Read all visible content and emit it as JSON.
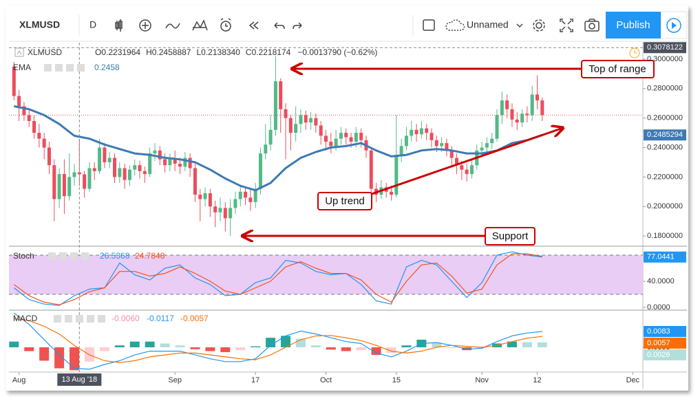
{
  "toolbar": {
    "symbol": "XLMUSD",
    "interval": "D",
    "layout_name": "Unnamed",
    "publish": "Publish"
  },
  "annotations": [
    "Top of range",
    "Up trend",
    "Support"
  ],
  "chart_data": [
    {
      "type": "candlestick",
      "title": "XLMUSD",
      "legend": {
        "items": [
          {
            "label": "O",
            "value": "0.2231964"
          },
          {
            "label": "H",
            "value": "0.2458887"
          },
          {
            "label": "L",
            "value": "0.2138340"
          },
          {
            "label": "C",
            "value": "0.2218174"
          }
        ],
        "change": "−0.0013790 (−0.62%)"
      },
      "xlim": [
        "2018-07-30",
        "2018-12-03"
      ],
      "xticks": [
        {
          "value": "2018-08-01",
          "label": "Aug"
        },
        {
          "value": "2018-09-01",
          "label": "Sep"
        },
        {
          "value": "2018-09-17",
          "label": "17"
        },
        {
          "value": "2018-10-01",
          "label": "Oct"
        },
        {
          "value": "2018-10-15",
          "label": "15"
        },
        {
          "value": "2018-11-01",
          "label": "Nov"
        },
        {
          "value": "2018-11-12",
          "label": "12"
        },
        {
          "value": "2018-12-01",
          "label": "Dec"
        }
      ],
      "ylim": [
        0.1735,
        0.3112
      ],
      "yticks": [
        {
          "value": 0.18,
          "label": "0.1800000"
        },
        {
          "value": 0.2,
          "label": "0.2000000"
        },
        {
          "value": 0.22,
          "label": "0.2200000"
        },
        {
          "value": 0.24,
          "label": "0.2400000"
        },
        {
          "value": 0.26,
          "label": "0.2600000"
        },
        {
          "value": 0.28,
          "label": "0.2800000"
        },
        {
          "value": 0.3,
          "label": "0.3000000"
        }
      ],
      "grid": false,
      "up_color": "#53b987",
      "down_color": "#eb4d5c",
      "last_price_color": "#eb4d5c",
      "crosshair": {
        "x": "2018-08-13",
        "x_label": "13 Aug '18",
        "y": 0.3078122
      },
      "x": [
        "2018-07-31",
        "2018-08-01",
        "2018-08-02",
        "2018-08-03",
        "2018-08-04",
        "2018-08-05",
        "2018-08-06",
        "2018-08-07",
        "2018-08-08",
        "2018-08-09",
        "2018-08-10",
        "2018-08-11",
        "2018-08-12",
        "2018-08-13",
        "2018-08-14",
        "2018-08-15",
        "2018-08-16",
        "2018-08-17",
        "2018-08-18",
        "2018-08-19",
        "2018-08-20",
        "2018-08-21",
        "2018-08-22",
        "2018-08-23",
        "2018-08-24",
        "2018-08-25",
        "2018-08-26",
        "2018-08-27",
        "2018-08-28",
        "2018-08-29",
        "2018-08-30",
        "2018-08-31",
        "2018-09-01",
        "2018-09-02",
        "2018-09-03",
        "2018-09-04",
        "2018-09-05",
        "2018-09-06",
        "2018-09-07",
        "2018-09-08",
        "2018-09-09",
        "2018-09-10",
        "2018-09-11",
        "2018-09-12",
        "2018-09-13",
        "2018-09-14",
        "2018-09-15",
        "2018-09-16",
        "2018-09-17",
        "2018-09-18",
        "2018-09-19",
        "2018-09-20",
        "2018-09-21",
        "2018-09-22",
        "2018-09-23",
        "2018-09-24",
        "2018-09-25",
        "2018-09-26",
        "2018-09-27",
        "2018-09-28",
        "2018-09-29",
        "2018-09-30",
        "2018-10-01",
        "2018-10-02",
        "2018-10-03",
        "2018-10-04",
        "2018-10-05",
        "2018-10-06",
        "2018-10-07",
        "2018-10-08",
        "2018-10-09",
        "2018-10-10",
        "2018-10-11",
        "2018-10-12",
        "2018-10-13",
        "2018-10-14",
        "2018-10-15",
        "2018-10-16",
        "2018-10-17",
        "2018-10-18",
        "2018-10-19",
        "2018-10-20",
        "2018-10-21",
        "2018-10-22",
        "2018-10-23",
        "2018-10-24",
        "2018-10-25",
        "2018-10-26",
        "2018-10-27",
        "2018-10-28",
        "2018-10-29",
        "2018-10-30",
        "2018-10-31",
        "2018-11-01",
        "2018-11-02",
        "2018-11-03",
        "2018-11-04",
        "2018-11-05",
        "2018-11-06",
        "2018-11-07",
        "2018-11-08",
        "2018-11-09",
        "2018-11-10",
        "2018-11-11",
        "2018-11-12",
        "2018-11-13"
      ],
      "open": [
        0.295,
        0.275,
        0.268,
        0.262,
        0.258,
        0.25,
        0.246,
        0.24,
        0.228,
        0.205,
        0.222,
        0.207,
        0.22,
        0.2231964,
        0.2218,
        0.212,
        0.226,
        0.224,
        0.24,
        0.23,
        0.233,
        0.22,
        0.226,
        0.218,
        0.225,
        0.228,
        0.224,
        0.222,
        0.236,
        0.238,
        0.232,
        0.228,
        0.232,
        0.229,
        0.227,
        0.233,
        0.226,
        0.208,
        0.205,
        0.209,
        0.2,
        0.196,
        0.199,
        0.192,
        0.199,
        0.205,
        0.21,
        0.206,
        0.203,
        0.212,
        0.236,
        0.242,
        0.252,
        0.285,
        0.266,
        0.26,
        0.25,
        0.256,
        0.262,
        0.257,
        0.26,
        0.255,
        0.248,
        0.244,
        0.241,
        0.246,
        0.25,
        0.247,
        0.244,
        0.25,
        0.245,
        0.238,
        0.212,
        0.208,
        0.213,
        0.21,
        0.208,
        0.235,
        0.241,
        0.248,
        0.252,
        0.249,
        0.253,
        0.25,
        0.245,
        0.241,
        0.243,
        0.238,
        0.233,
        0.228,
        0.225,
        0.222,
        0.228,
        0.238,
        0.24,
        0.243,
        0.246,
        0.262,
        0.272,
        0.266,
        0.259,
        0.257,
        0.263,
        0.262,
        0.276,
        0.272
      ],
      "high": [
        0.298,
        0.279,
        0.271,
        0.266,
        0.262,
        0.256,
        0.25,
        0.244,
        0.232,
        0.226,
        0.232,
        0.236,
        0.229,
        0.2458887,
        0.224,
        0.23,
        0.23,
        0.246,
        0.243,
        0.237,
        0.236,
        0.23,
        0.229,
        0.228,
        0.232,
        0.231,
        0.227,
        0.24,
        0.243,
        0.241,
        0.236,
        0.236,
        0.238,
        0.233,
        0.237,
        0.236,
        0.229,
        0.212,
        0.213,
        0.212,
        0.204,
        0.206,
        0.203,
        0.205,
        0.21,
        0.214,
        0.213,
        0.212,
        0.216,
        0.24,
        0.256,
        0.262,
        0.302,
        0.287,
        0.27,
        0.262,
        0.268,
        0.266,
        0.265,
        0.264,
        0.263,
        0.258,
        0.252,
        0.25,
        0.252,
        0.254,
        0.253,
        0.25,
        0.254,
        0.253,
        0.248,
        0.24,
        0.216,
        0.218,
        0.216,
        0.214,
        0.262,
        0.246,
        0.254,
        0.258,
        0.256,
        0.258,
        0.256,
        0.253,
        0.248,
        0.247,
        0.246,
        0.241,
        0.236,
        0.231,
        0.229,
        0.232,
        0.242,
        0.244,
        0.247,
        0.25,
        0.266,
        0.278,
        0.276,
        0.27,
        0.264,
        0.266,
        0.268,
        0.282,
        0.289,
        0.274
      ],
      "low": [
        0.272,
        0.258,
        0.258,
        0.254,
        0.246,
        0.24,
        0.232,
        0.222,
        0.19,
        0.199,
        0.195,
        0.204,
        0.214,
        0.213834,
        0.206,
        0.21,
        0.218,
        0.222,
        0.226,
        0.226,
        0.216,
        0.216,
        0.212,
        0.214,
        0.221,
        0.219,
        0.216,
        0.22,
        0.231,
        0.228,
        0.223,
        0.224,
        0.224,
        0.222,
        0.224,
        0.22,
        0.203,
        0.19,
        0.2,
        0.193,
        0.186,
        0.19,
        0.183,
        0.18,
        0.195,
        0.2,
        0.201,
        0.197,
        0.199,
        0.208,
        0.232,
        0.238,
        0.248,
        0.25,
        0.232,
        0.238,
        0.244,
        0.25,
        0.252,
        0.252,
        0.25,
        0.242,
        0.238,
        0.236,
        0.238,
        0.242,
        0.242,
        0.24,
        0.24,
        0.24,
        0.233,
        0.208,
        0.203,
        0.205,
        0.206,
        0.204,
        0.206,
        0.23,
        0.238,
        0.244,
        0.244,
        0.246,
        0.245,
        0.24,
        0.237,
        0.237,
        0.234,
        0.228,
        0.222,
        0.218,
        0.217,
        0.219,
        0.225,
        0.234,
        0.236,
        0.239,
        0.244,
        0.256,
        0.26,
        0.254,
        0.252,
        0.254,
        0.257,
        0.258,
        0.266,
        0.258
      ],
      "close": [
        0.275,
        0.268,
        0.262,
        0.258,
        0.25,
        0.246,
        0.24,
        0.228,
        0.205,
        0.222,
        0.207,
        0.22,
        0.2231964,
        0.2218174,
        0.212,
        0.226,
        0.224,
        0.24,
        0.23,
        0.233,
        0.22,
        0.226,
        0.218,
        0.225,
        0.228,
        0.224,
        0.222,
        0.236,
        0.238,
        0.232,
        0.228,
        0.232,
        0.229,
        0.227,
        0.233,
        0.226,
        0.208,
        0.205,
        0.209,
        0.2,
        0.196,
        0.199,
        0.192,
        0.199,
        0.205,
        0.21,
        0.206,
        0.203,
        0.212,
        0.236,
        0.242,
        0.252,
        0.285,
        0.266,
        0.26,
        0.25,
        0.256,
        0.262,
        0.257,
        0.26,
        0.255,
        0.248,
        0.244,
        0.241,
        0.246,
        0.25,
        0.247,
        0.244,
        0.25,
        0.245,
        0.238,
        0.212,
        0.208,
        0.213,
        0.21,
        0.208,
        0.235,
        0.241,
        0.248,
        0.252,
        0.249,
        0.253,
        0.25,
        0.245,
        0.241,
        0.243,
        0.238,
        0.233,
        0.228,
        0.225,
        0.222,
        0.228,
        0.238,
        0.24,
        0.243,
        0.246,
        0.262,
        0.272,
        0.266,
        0.259,
        0.257,
        0.263,
        0.262,
        0.276,
        0.272,
        0.262
      ],
      "overlays": [
        {
          "name": "EMA",
          "legend_value": "0.2458",
          "last_label": "0.2485294",
          "color": "#3d7ab3",
          "x": [
            "2018-07-31",
            "2018-08-03",
            "2018-08-06",
            "2018-08-09",
            "2018-08-12",
            "2018-08-15",
            "2018-08-18",
            "2018-08-21",
            "2018-08-24",
            "2018-08-27",
            "2018-08-30",
            "2018-09-02",
            "2018-09-05",
            "2018-09-08",
            "2018-09-11",
            "2018-09-14",
            "2018-09-17",
            "2018-09-20",
            "2018-09-23",
            "2018-09-26",
            "2018-09-29",
            "2018-10-02",
            "2018-10-05",
            "2018-10-08",
            "2018-10-11",
            "2018-10-14",
            "2018-10-17",
            "2018-10-20",
            "2018-10-23",
            "2018-10-26",
            "2018-10-29",
            "2018-11-01",
            "2018-11-04",
            "2018-11-07",
            "2018-11-10",
            "2018-11-13"
          ],
          "values": [
            0.268,
            0.266,
            0.262,
            0.256,
            0.248,
            0.246,
            0.242,
            0.239,
            0.236,
            0.235,
            0.233,
            0.232,
            0.23,
            0.225,
            0.219,
            0.214,
            0.211,
            0.216,
            0.226,
            0.233,
            0.237,
            0.24,
            0.241,
            0.243,
            0.238,
            0.234,
            0.235,
            0.238,
            0.239,
            0.238,
            0.236,
            0.236,
            0.238,
            0.243,
            0.245,
            0.2485294
          ]
        }
      ]
    },
    {
      "type": "line",
      "title": "Stoch",
      "ylim": [
        -3.2,
        92.6
      ],
      "yticks": [
        {
          "value": 0,
          "label": "0.0000"
        },
        {
          "value": 40,
          "label": "40.0000"
        }
      ],
      "bands": [
        20,
        80
      ],
      "band_color": "#e9cdf5",
      "x": [
        "2018-07-31",
        "2018-08-03",
        "2018-08-06",
        "2018-08-09",
        "2018-08-12",
        "2018-08-15",
        "2018-08-18",
        "2018-08-21",
        "2018-08-24",
        "2018-08-27",
        "2018-08-30",
        "2018-09-02",
        "2018-09-05",
        "2018-09-08",
        "2018-09-11",
        "2018-09-14",
        "2018-09-17",
        "2018-09-20",
        "2018-09-23",
        "2018-09-26",
        "2018-09-29",
        "2018-10-02",
        "2018-10-05",
        "2018-10-08",
        "2018-10-11",
        "2018-10-14",
        "2018-10-17",
        "2018-10-20",
        "2018-10-23",
        "2018-10-26",
        "2018-10-29",
        "2018-11-01",
        "2018-11-04",
        "2018-11-07",
        "2018-11-10",
        "2018-11-13"
      ],
      "series": [
        {
          "color": "#2196f3",
          "legend_value": "26.5368",
          "last_label": "77.0441",
          "values": [
            30,
            12,
            5,
            3,
            18,
            28,
            30,
            68,
            50,
            42,
            60,
            65,
            45,
            35,
            18,
            20,
            38,
            45,
            72,
            68,
            55,
            50,
            52,
            35,
            10,
            5,
            62,
            72,
            65,
            40,
            15,
            38,
            80,
            85,
            80,
            77.0441
          ]
        },
        {
          "color": "#f4511e",
          "legend_value": "24.7848",
          "values": [
            35,
            18,
            8,
            4,
            12,
            24,
            30,
            55,
            55,
            48,
            52,
            62,
            52,
            40,
            25,
            20,
            30,
            40,
            62,
            70,
            60,
            52,
            52,
            42,
            20,
            8,
            40,
            65,
            68,
            48,
            22,
            28,
            65,
            82,
            82,
            78
          ]
        }
      ]
    },
    {
      "type": "macd",
      "title": "MACD",
      "ylim": [
        -0.0126,
        0.0191
      ],
      "yticks": [
        {
          "value": 0,
          "label": "0.0000"
        }
      ],
      "x": [
        "2018-07-31",
        "2018-08-03",
        "2018-08-06",
        "2018-08-09",
        "2018-08-12",
        "2018-08-15",
        "2018-08-18",
        "2018-08-21",
        "2018-08-24",
        "2018-08-27",
        "2018-08-30",
        "2018-09-02",
        "2018-09-05",
        "2018-09-08",
        "2018-09-11",
        "2018-09-14",
        "2018-09-17",
        "2018-09-20",
        "2018-09-23",
        "2018-09-26",
        "2018-09-29",
        "2018-10-02",
        "2018-10-05",
        "2018-10-08",
        "2018-10-11",
        "2018-10-14",
        "2018-10-17",
        "2018-10-20",
        "2018-10-23",
        "2018-10-26",
        "2018-10-29",
        "2018-11-01",
        "2018-11-04",
        "2018-11-07",
        "2018-11-10",
        "2018-11-13"
      ],
      "histogram": {
        "legend_value": "-0.0060",
        "last_label": "0.0026",
        "legend_color": "#f48fb1",
        "label_color": "#b2dfdb",
        "colors": {
          "up_rising": "#26a69a",
          "up_falling": "#b2dfdb",
          "down_falling": "#ef5350",
          "down_rising": "#ffcdd2"
        },
        "values": [
          0.003,
          -0.002,
          -0.007,
          -0.011,
          -0.012,
          -0.0075,
          -0.002,
          0.001,
          0.003,
          0.003,
          0.002,
          0.001,
          -0.001,
          -0.002,
          -0.0025,
          -0.0015,
          0.0005,
          0.005,
          0.006,
          0.0045,
          0.001,
          -0.0012,
          -0.002,
          -0.0015,
          -0.004,
          -0.003,
          0.001,
          0.004,
          0.0025,
          0,
          -0.0015,
          -0.0005,
          0.002,
          0.003,
          0.0027,
          0.0026
        ]
      },
      "series": [
        {
          "color": "#2196f3",
          "legend_value": "-0.0117",
          "last_label": "0.0083",
          "values": [
            0.018,
            0.012,
            0.004,
            -0.004,
            -0.011,
            -0.0115,
            -0.009,
            -0.007,
            -0.004,
            -0.002,
            -0.002,
            -0.002,
            -0.004,
            -0.006,
            -0.0075,
            -0.0075,
            -0.006,
            0.001,
            0.006,
            0.0085,
            0.007,
            0.005,
            0.003,
            0.002,
            -0.003,
            -0.005,
            -0.002,
            0.002,
            0.0025,
            0.001,
            -0.001,
            -0.0005,
            0.003,
            0.006,
            0.0075,
            0.0083
          ]
        },
        {
          "color": "#ff6d00",
          "legend_value": "-0.0057",
          "last_label": "0.0057",
          "values": [
            0.015,
            0.014,
            0.011,
            0.007,
            0.001,
            -0.004,
            -0.007,
            -0.008,
            -0.007,
            -0.005,
            -0.004,
            -0.003,
            -0.003,
            -0.004,
            -0.005,
            -0.006,
            -0.0065,
            -0.004,
            0,
            0.004,
            0.006,
            0.0062,
            0.005,
            0.0035,
            0.001,
            -0.002,
            -0.003,
            -0.002,
            0,
            0.001,
            0.0005,
            0,
            0.001,
            0.003,
            0.0048,
            0.0057
          ]
        }
      ]
    }
  ]
}
